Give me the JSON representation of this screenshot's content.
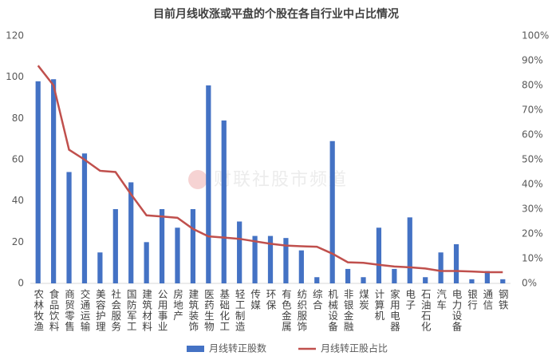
{
  "chart_data": {
    "type": "bar-line",
    "title": "目前月线收涨或平盘的个股在各自行业中占比情况",
    "watermark": "财联社股市频道",
    "categories": [
      "农林牧渔",
      "食品饮料",
      "商贸零售",
      "交通运输",
      "美容护理",
      "社会服务",
      "国防军工",
      "建筑材料",
      "公用事业",
      "房地产",
      "建筑装饰",
      "医药生物",
      "基础化工",
      "轻工制造",
      "传媒",
      "环保",
      "有色金属",
      "纺织服饰",
      "综合",
      "机械设备",
      "非银金融",
      "煤炭",
      "计算机",
      "家用电器",
      "电子",
      "石油石化",
      "汽车",
      "电力设备",
      "银行",
      "通信",
      "钢铁"
    ],
    "series": [
      {
        "name": "月线转正股数",
        "type": "bar",
        "color": "#4472c4",
        "values": [
          98,
          99,
          54,
          63,
          15,
          36,
          49,
          20,
          36,
          27,
          36,
          96,
          79,
          30,
          23,
          23,
          22,
          16,
          3,
          69,
          7,
          3,
          27,
          7,
          32,
          3,
          15,
          19,
          2,
          6,
          2
        ]
      },
      {
        "name": "月线转正股占比",
        "type": "line",
        "axis": "y2",
        "color": "#c0504d",
        "values": [
          88,
          80,
          54,
          50,
          45.5,
          45,
          36,
          27.5,
          27,
          26.5,
          22,
          19,
          18.5,
          18,
          17,
          16,
          15.3,
          15,
          14.8,
          12,
          8.5,
          8.3,
          7.5,
          6.8,
          6.5,
          6,
          5,
          5,
          4.8,
          4.5,
          4.5
        ]
      }
    ],
    "ylim": [
      0,
      120
    ],
    "yticks": [
      0,
      20,
      40,
      60,
      80,
      100,
      120
    ],
    "y2lim": [
      0,
      100
    ],
    "y2ticks": [
      {
        "value": 0,
        "label": "0%"
      },
      {
        "value": 10,
        "label": "10%"
      },
      {
        "value": 20,
        "label": "20%"
      },
      {
        "value": 30,
        "label": "30%"
      },
      {
        "value": 40,
        "label": "40%"
      },
      {
        "value": 50,
        "label": "50%"
      },
      {
        "value": 60,
        "label": "60%"
      },
      {
        "value": 70,
        "label": "70%"
      },
      {
        "value": 80,
        "label": "80%"
      },
      {
        "value": 90,
        "label": "90%"
      },
      {
        "value": 100,
        "label": "100%"
      }
    ],
    "legend": "bottom"
  }
}
